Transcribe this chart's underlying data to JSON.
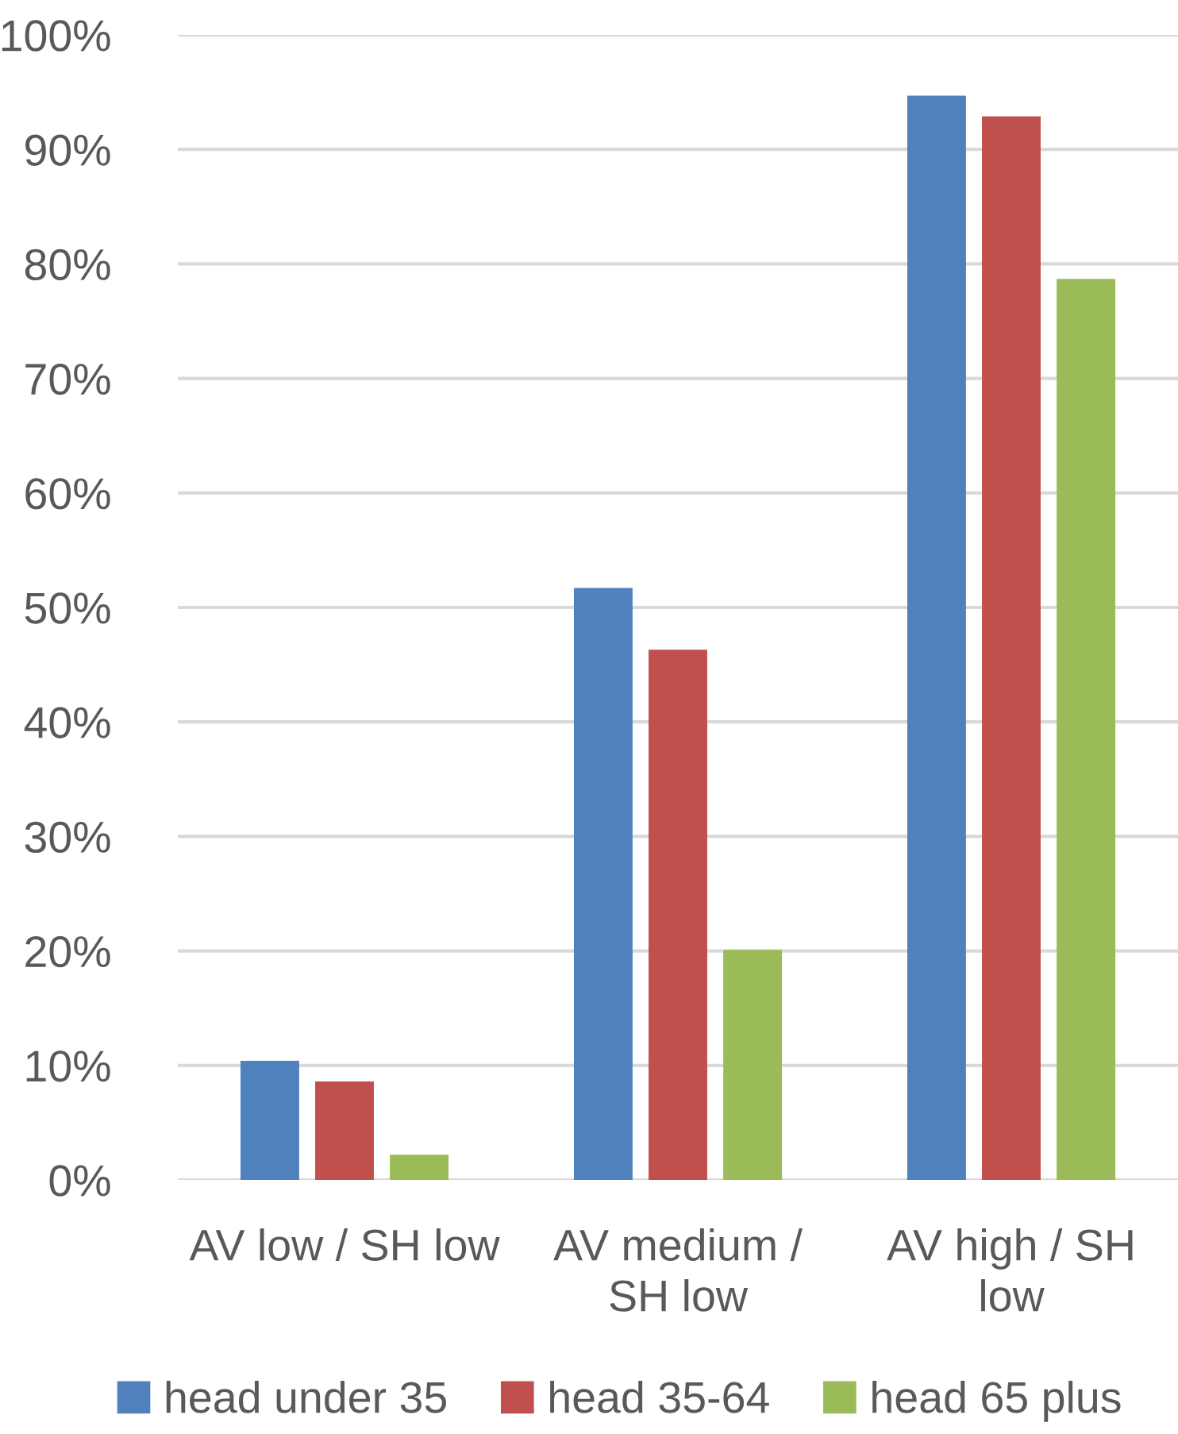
{
  "chart_data": {
    "type": "bar",
    "categories": [
      "AV low / SH low",
      "AV medium /\nSH low",
      "AV high / SH\nlow"
    ],
    "series": [
      {
        "name": "head under 35",
        "color": "#4f81bd",
        "values": [
          10.4,
          51.7,
          94.7
        ]
      },
      {
        "name": "head 35-64",
        "color": "#c0504d",
        "values": [
          8.6,
          46.3,
          92.9
        ]
      },
      {
        "name": "head 65 plus",
        "color": "#9bbb59",
        "values": [
          2.2,
          20.1,
          78.7
        ]
      }
    ],
    "ylim": [
      0,
      100
    ],
    "yticks": [
      {
        "value": 0,
        "label": "0%"
      },
      {
        "value": 10,
        "label": "10%"
      },
      {
        "value": 20,
        "label": "20%"
      },
      {
        "value": 30,
        "label": "30%"
      },
      {
        "value": 40,
        "label": "40%"
      },
      {
        "value": 50,
        "label": "50%"
      },
      {
        "value": 60,
        "label": "60%"
      },
      {
        "value": 70,
        "label": "70%"
      },
      {
        "value": 80,
        "label": "80%"
      },
      {
        "value": 90,
        "label": "90%"
      },
      {
        "value": 100,
        "label": "100%"
      }
    ],
    "grid": "y",
    "legend": "bottom"
  }
}
